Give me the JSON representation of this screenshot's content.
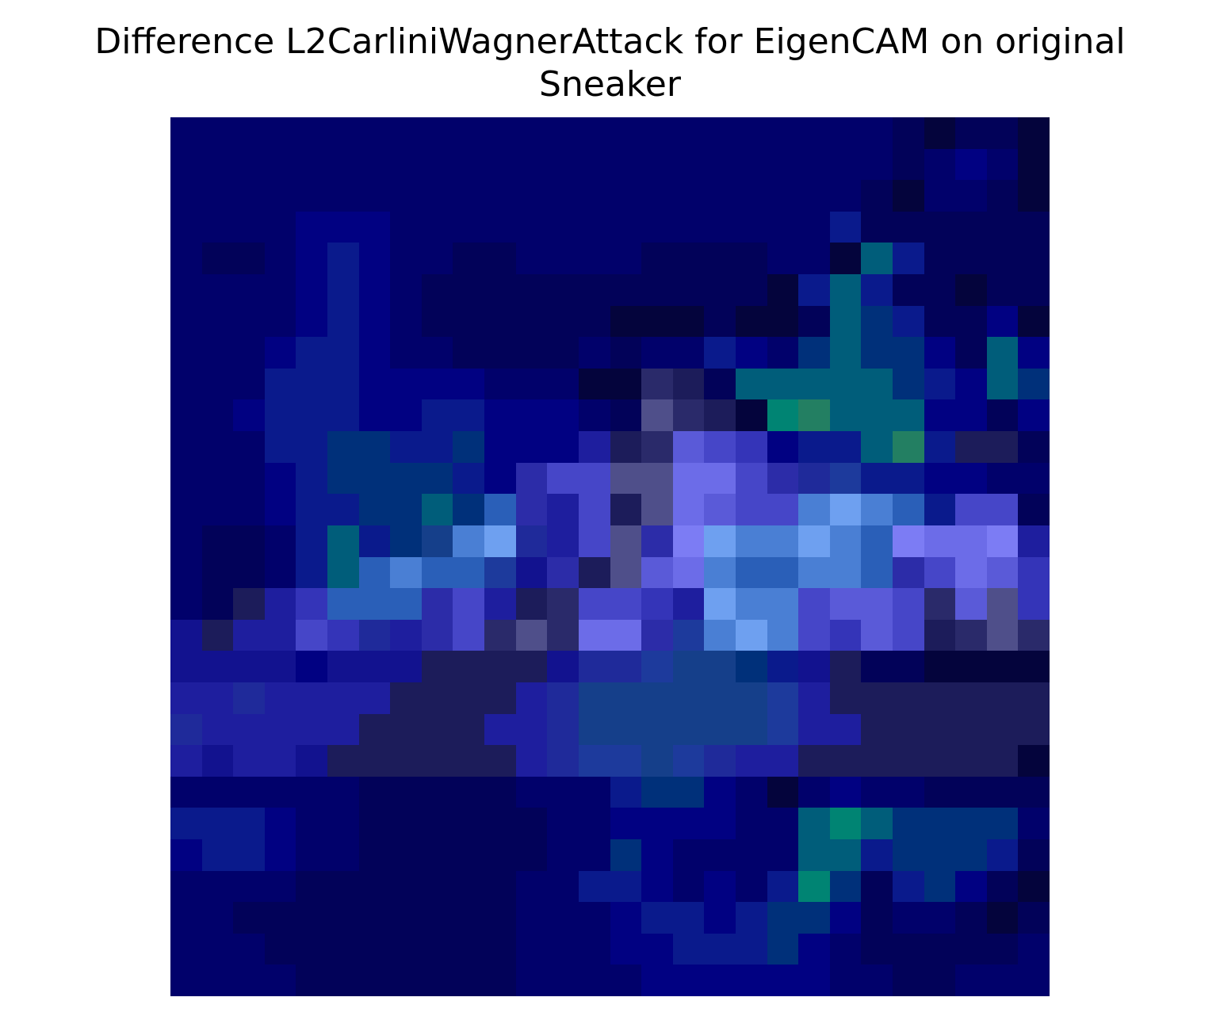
{
  "title": {
    "line1": "Difference L2CarliniWagnerAttack for EigenCAM on original",
    "line2": "Sneaker"
  },
  "chart_data": {
    "type": "heatmap",
    "title": "Difference L2CarliniWagnerAttack for EigenCAM on original Sneaker",
    "xlabel": "",
    "ylabel": "",
    "axes_visible": false,
    "grid": false,
    "legend": "none",
    "rows": 28,
    "cols": 28,
    "palette": {
      "0": "#04043c",
      "1": "#020259",
      "2": "#01016b",
      "3": "#010182",
      "4": "#0a1a8c",
      "5": "#12128f",
      "6": "#1e1e9e",
      "7": "#2c2ca8",
      "8": "#3434b8",
      "9": "#4646c8",
      "10": "#5a5ad8",
      "11": "#6c6ce8",
      "12": "#7c7cf4",
      "13": "#4f4f8a",
      "14": "#1f2a9a",
      "15": "#2a5fb8",
      "16": "#4a7fd4",
      "17": "#6ea0f0",
      "18": "#005d7a",
      "19": "#008473",
      "20": "#237f62",
      "21": "#1c1c5a",
      "22": "#2a2a6a",
      "23": "#1d3a9c",
      "24": "#153f8a",
      "25": "#00307a"
    },
    "matrix": [
      [
        2,
        2,
        2,
        2,
        2,
        2,
        2,
        2,
        2,
        2,
        2,
        2,
        2,
        2,
        2,
        2,
        2,
        2,
        2,
        2,
        2,
        2,
        2,
        1,
        0,
        1,
        1,
        0
      ],
      [
        2,
        2,
        2,
        2,
        2,
        2,
        2,
        2,
        2,
        2,
        2,
        2,
        2,
        2,
        2,
        2,
        2,
        2,
        2,
        2,
        2,
        2,
        2,
        1,
        2,
        3,
        2,
        0
      ],
      [
        2,
        2,
        2,
        2,
        2,
        2,
        2,
        2,
        2,
        2,
        2,
        2,
        2,
        2,
        2,
        2,
        2,
        2,
        2,
        2,
        2,
        2,
        1,
        0,
        2,
        2,
        1,
        0
      ],
      [
        2,
        2,
        2,
        2,
        3,
        3,
        3,
        2,
        2,
        2,
        2,
        2,
        2,
        2,
        2,
        2,
        2,
        2,
        2,
        2,
        2,
        4,
        1,
        1,
        1,
        1,
        1,
        1
      ],
      [
        2,
        1,
        1,
        2,
        3,
        4,
        3,
        2,
        2,
        1,
        1,
        2,
        2,
        2,
        2,
        1,
        1,
        1,
        1,
        2,
        2,
        0,
        18,
        4,
        1,
        1,
        1,
        1
      ],
      [
        2,
        2,
        2,
        2,
        3,
        4,
        3,
        2,
        1,
        1,
        1,
        1,
        1,
        1,
        1,
        1,
        1,
        1,
        1,
        0,
        4,
        18,
        4,
        1,
        1,
        0,
        1,
        1
      ],
      [
        2,
        2,
        2,
        2,
        3,
        4,
        3,
        2,
        1,
        1,
        1,
        1,
        1,
        1,
        0,
        0,
        0,
        1,
        0,
        0,
        1,
        18,
        25,
        4,
        1,
        1,
        3,
        0
      ],
      [
        2,
        2,
        2,
        3,
        4,
        4,
        3,
        2,
        2,
        1,
        1,
        1,
        1,
        2,
        1,
        2,
        2,
        4,
        3,
        2,
        25,
        18,
        25,
        25,
        3,
        1,
        18,
        3
      ],
      [
        2,
        2,
        2,
        4,
        4,
        4,
        3,
        3,
        3,
        3,
        2,
        2,
        2,
        0,
        0,
        22,
        21,
        1,
        18,
        18,
        18,
        18,
        18,
        25,
        4,
        3,
        18,
        25
      ],
      [
        2,
        2,
        3,
        4,
        4,
        4,
        3,
        3,
        4,
        4,
        3,
        3,
        3,
        2,
        1,
        13,
        22,
        21,
        0,
        19,
        20,
        18,
        18,
        18,
        3,
        3,
        1,
        3
      ],
      [
        2,
        2,
        2,
        4,
        4,
        25,
        25,
        4,
        4,
        25,
        3,
        3,
        3,
        6,
        21,
        22,
        10,
        9,
        8,
        3,
        4,
        4,
        18,
        20,
        4,
        21,
        21,
        1
      ],
      [
        2,
        2,
        2,
        3,
        4,
        25,
        25,
        25,
        25,
        4,
        3,
        7,
        9,
        9,
        13,
        13,
        11,
        11,
        9,
        7,
        14,
        23,
        4,
        4,
        3,
        3,
        2,
        2
      ],
      [
        2,
        2,
        2,
        3,
        4,
        4,
        25,
        25,
        18,
        25,
        15,
        7,
        6,
        9,
        21,
        13,
        11,
        10,
        9,
        9,
        16,
        17,
        16,
        15,
        4,
        9,
        9,
        1
      ],
      [
        2,
        1,
        1,
        2,
        4,
        18,
        4,
        25,
        24,
        16,
        17,
        14,
        6,
        9,
        13,
        7,
        12,
        17,
        16,
        16,
        17,
        16,
        15,
        12,
        11,
        11,
        12,
        6
      ],
      [
        2,
        1,
        1,
        2,
        4,
        18,
        15,
        16,
        15,
        15,
        23,
        5,
        7,
        21,
        13,
        10,
        11,
        16,
        15,
        15,
        16,
        16,
        15,
        7,
        9,
        11,
        10,
        8
      ],
      [
        2,
        1,
        21,
        6,
        8,
        15,
        15,
        15,
        7,
        9,
        6,
        21,
        22,
        9,
        9,
        8,
        6,
        17,
        16,
        16,
        9,
        10,
        10,
        9,
        22,
        10,
        13,
        8
      ],
      [
        5,
        21,
        6,
        6,
        9,
        8,
        14,
        6,
        7,
        9,
        22,
        13,
        22,
        11,
        11,
        7,
        23,
        16,
        17,
        16,
        9,
        8,
        10,
        9,
        21,
        22,
        13,
        22
      ],
      [
        5,
        5,
        5,
        5,
        3,
        5,
        5,
        5,
        21,
        21,
        21,
        21,
        5,
        14,
        14,
        23,
        24,
        24,
        25,
        4,
        5,
        21,
        1,
        1,
        0,
        0,
        0,
        0
      ],
      [
        6,
        6,
        14,
        6,
        6,
        6,
        6,
        21,
        21,
        21,
        21,
        6,
        14,
        24,
        24,
        24,
        24,
        24,
        24,
        23,
        6,
        21,
        21,
        21,
        21,
        21,
        21,
        21
      ],
      [
        14,
        6,
        6,
        6,
        6,
        6,
        21,
        21,
        21,
        21,
        6,
        6,
        14,
        24,
        24,
        24,
        24,
        24,
        24,
        23,
        6,
        6,
        21,
        21,
        21,
        21,
        21,
        21
      ],
      [
        6,
        5,
        6,
        6,
        5,
        21,
        21,
        21,
        21,
        21,
        21,
        6,
        14,
        23,
        23,
        24,
        23,
        14,
        6,
        6,
        21,
        21,
        21,
        21,
        21,
        21,
        21,
        0
      ],
      [
        2,
        2,
        2,
        2,
        2,
        2,
        1,
        1,
        1,
        1,
        1,
        2,
        2,
        2,
        4,
        25,
        25,
        3,
        2,
        0,
        2,
        3,
        2,
        2,
        1,
        1,
        1,
        1
      ],
      [
        4,
        4,
        4,
        3,
        2,
        2,
        1,
        1,
        1,
        1,
        1,
        1,
        2,
        2,
        3,
        3,
        3,
        3,
        2,
        2,
        18,
        19,
        18,
        25,
        25,
        25,
        25,
        2
      ],
      [
        3,
        4,
        4,
        3,
        2,
        2,
        1,
        1,
        1,
        1,
        1,
        1,
        2,
        2,
        25,
        3,
        2,
        2,
        2,
        2,
        18,
        18,
        4,
        25,
        25,
        25,
        4,
        1
      ],
      [
        2,
        2,
        2,
        2,
        1,
        1,
        1,
        1,
        1,
        1,
        1,
        2,
        2,
        4,
        4,
        3,
        2,
        3,
        2,
        4,
        19,
        25,
        1,
        4,
        25,
        3,
        1,
        0
      ],
      [
        2,
        2,
        1,
        1,
        1,
        1,
        1,
        1,
        1,
        1,
        1,
        2,
        2,
        2,
        3,
        4,
        4,
        3,
        4,
        25,
        25,
        3,
        1,
        2,
        2,
        1,
        0,
        1
      ],
      [
        2,
        2,
        2,
        1,
        1,
        1,
        1,
        1,
        1,
        1,
        1,
        2,
        2,
        2,
        3,
        3,
        4,
        4,
        4,
        25,
        3,
        2,
        1,
        1,
        1,
        1,
        1,
        2
      ],
      [
        2,
        2,
        2,
        2,
        1,
        1,
        1,
        1,
        1,
        1,
        1,
        2,
        2,
        2,
        2,
        3,
        3,
        3,
        3,
        3,
        3,
        2,
        2,
        1,
        1,
        2,
        2,
        2
      ]
    ]
  }
}
